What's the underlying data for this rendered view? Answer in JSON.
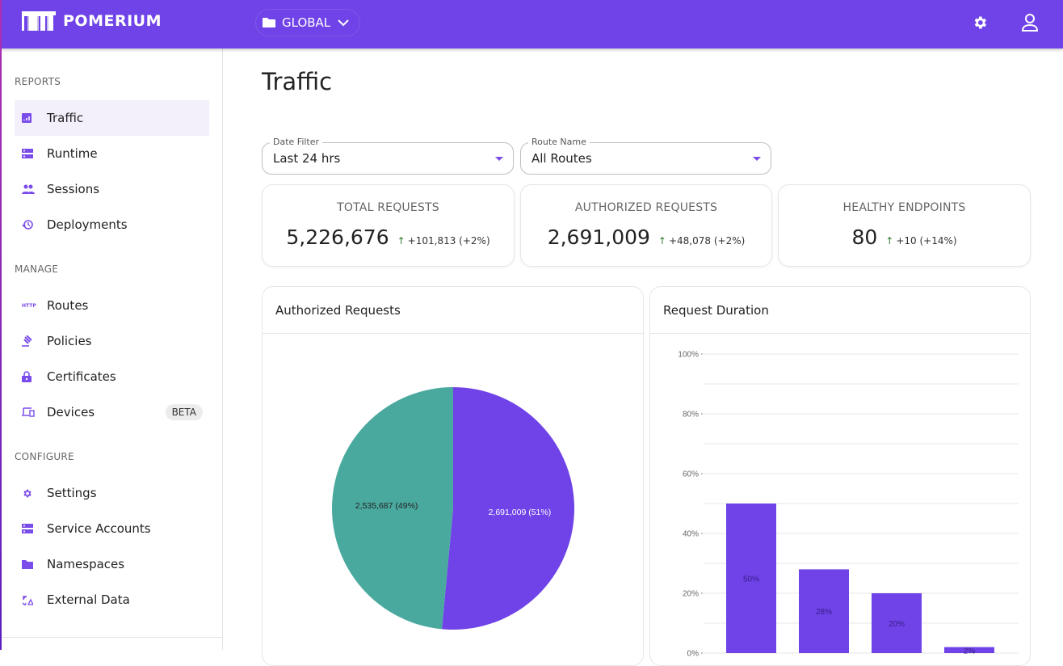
{
  "header": {
    "brand": "POMERIUM",
    "namespace": "GLOBAL"
  },
  "sidebar": {
    "sections": [
      {
        "label": "REPORTS",
        "items": [
          {
            "label": "Traffic",
            "icon": "bar-chart-icon",
            "active": true
          },
          {
            "label": "Runtime",
            "icon": "server-icon"
          },
          {
            "label": "Sessions",
            "icon": "people-icon"
          },
          {
            "label": "Deployments",
            "icon": "history-icon"
          }
        ]
      },
      {
        "label": "MANAGE",
        "items": [
          {
            "label": "Routes",
            "icon": "http-icon"
          },
          {
            "label": "Policies",
            "icon": "gavel-icon"
          },
          {
            "label": "Certificates",
            "icon": "lock-icon"
          },
          {
            "label": "Devices",
            "icon": "devices-icon",
            "badge": "BETA"
          }
        ]
      },
      {
        "label": "CONFIGURE",
        "items": [
          {
            "label": "Settings",
            "icon": "gear-icon"
          },
          {
            "label": "Service Accounts",
            "icon": "server-icon"
          },
          {
            "label": "Namespaces",
            "icon": "folder-icon"
          },
          {
            "label": "External Data",
            "icon": "sync-icon"
          }
        ]
      }
    ]
  },
  "page": {
    "title": "Traffic"
  },
  "filters": {
    "date": {
      "label": "Date Filter",
      "value": "Last 24 hrs"
    },
    "route": {
      "label": "Route Name",
      "value": "All Routes"
    }
  },
  "stats": [
    {
      "title": "TOTAL REQUESTS",
      "value": "5,226,676",
      "delta": "+101,813 (+2%)"
    },
    {
      "title": "AUTHORIZED REQUESTS",
      "value": "2,691,009",
      "delta": "+48,078 (+2%)"
    },
    {
      "title": "HEALTHY ENDPOINTS",
      "value": "80",
      "delta": "+10 (+14%)"
    }
  ],
  "chart_data": [
    {
      "type": "pie",
      "title": "Authorized Requests",
      "slices": [
        {
          "value": 2691009,
          "label": "2,691,009 (51%)",
          "color": "#6f43e7"
        },
        {
          "value": 2535687,
          "label": "2,535,687 (49%)",
          "color": "#4aa99f"
        }
      ]
    },
    {
      "type": "bar",
      "title": "Request Duration",
      "ylim": [
        0,
        100
      ],
      "yticks": [
        "0%",
        "20%",
        "40%",
        "60%",
        "80%",
        "100%"
      ],
      "grid": true,
      "values": [
        50,
        28,
        20,
        2
      ],
      "labels": [
        "50%",
        "28%",
        "20%",
        "2%"
      ],
      "color": "#6f43e7"
    }
  ]
}
